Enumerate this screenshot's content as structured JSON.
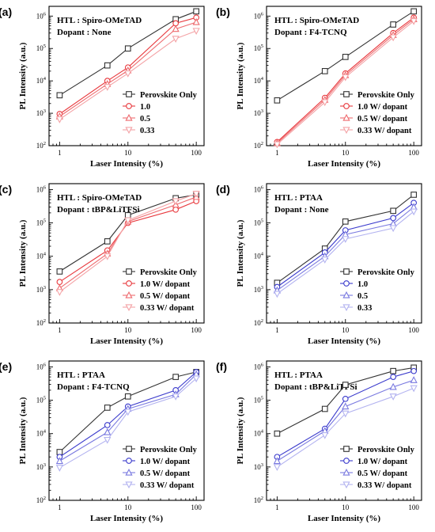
{
  "chart_data": [
    {
      "panel_label": "(a)",
      "type": "line",
      "xscale": "log",
      "yscale": "log",
      "xlabel": "Laser Intensity (%)",
      "ylabel": "PL Intensity (a.u.)",
      "xlim": [
        0.7,
        130
      ],
      "ylim": [
        100,
        2000000
      ],
      "xticks": [
        {
          "v": 1,
          "label": "1"
        },
        {
          "v": 10,
          "label": "10"
        },
        {
          "v": 100,
          "label": "100"
        }
      ],
      "yticks": [
        {
          "v": 100,
          "b": "10",
          "e": "2"
        },
        {
          "v": 1000,
          "b": "10",
          "e": "3"
        },
        {
          "v": 10000,
          "b": "10",
          "e": "4"
        },
        {
          "v": 100000,
          "b": "10",
          "e": "5"
        },
        {
          "v": 1000000,
          "b": "10",
          "e": "6"
        }
      ],
      "annotations": [
        "HTL : Spiro-OMeTAD",
        "Dopant : None"
      ],
      "legend_position": "bottom-right",
      "x": [
        1,
        5,
        10,
        50,
        100
      ],
      "series": [
        {
          "name": "Perovskite Only",
          "color": "#333333",
          "marker": "square",
          "values": [
            3600,
            30000,
            100000,
            800000,
            1400000
          ]
        },
        {
          "name": "1.0",
          "color": "#e8383d",
          "marker": "circle",
          "values": [
            950,
            10000,
            26000,
            600000,
            900000
          ]
        },
        {
          "name": "0.5",
          "color": "#ee6b6f",
          "marker": "triangle-up",
          "values": [
            800,
            8000,
            21000,
            400000,
            650000
          ]
        },
        {
          "name": "0.33",
          "color": "#f4a3a6",
          "marker": "triangle-down",
          "values": [
            650,
            6500,
            17000,
            200000,
            350000
          ]
        }
      ]
    },
    {
      "panel_label": "(b)",
      "type": "line",
      "xscale": "log",
      "yscale": "log",
      "xlabel": "Laser Intensity (%)",
      "ylabel": "PL Intensity (a.u.)",
      "xlim": [
        0.7,
        130
      ],
      "ylim": [
        100,
        2000000
      ],
      "xticks": [
        {
          "v": 1,
          "label": "1"
        },
        {
          "v": 10,
          "label": "10"
        },
        {
          "v": 100,
          "label": "100"
        }
      ],
      "yticks": [
        {
          "v": 100,
          "b": "10",
          "e": "2"
        },
        {
          "v": 1000,
          "b": "10",
          "e": "3"
        },
        {
          "v": 10000,
          "b": "10",
          "e": "4"
        },
        {
          "v": 100000,
          "b": "10",
          "e": "5"
        },
        {
          "v": 1000000,
          "b": "10",
          "e": "6"
        }
      ],
      "annotations": [
        "HTL : Spiro-OMeTAD",
        "Dopant : F4-TCNQ"
      ],
      "legend_position": "bottom-right",
      "x": [
        1,
        5,
        10,
        50,
        100
      ],
      "series": [
        {
          "name": "Perovskite Only",
          "color": "#333333",
          "marker": "square",
          "values": [
            2500,
            20000,
            55000,
            550000,
            1400000
          ]
        },
        {
          "name": "1.0 W/ dopant",
          "color": "#e8383d",
          "marker": "circle",
          "values": [
            130,
            3000,
            17000,
            300000,
            900000
          ]
        },
        {
          "name": "0.5 W/ dopant",
          "color": "#ee6b6f",
          "marker": "triangle-up",
          "values": [
            120,
            2600,
            15000,
            260000,
            800000
          ]
        },
        {
          "name": "0.33 W/ dopant",
          "color": "#f4a3a6",
          "marker": "triangle-down",
          "values": [
            110,
            2200,
            13000,
            220000,
            700000
          ]
        }
      ]
    },
    {
      "panel_label": "(c)",
      "type": "line",
      "xscale": "log",
      "yscale": "log",
      "xlabel": "Laser Intensity (%)",
      "ylabel": "PL Intensity (a.u.)",
      "xlim": [
        0.7,
        130
      ],
      "ylim": [
        100,
        1500000
      ],
      "xticks": [
        {
          "v": 1,
          "label": "1"
        },
        {
          "v": 10,
          "label": "10"
        },
        {
          "v": 100,
          "label": "100"
        }
      ],
      "yticks": [
        {
          "v": 100,
          "b": "10",
          "e": "2"
        },
        {
          "v": 1000,
          "b": "10",
          "e": "3"
        },
        {
          "v": 10000,
          "b": "10",
          "e": "4"
        },
        {
          "v": 100000,
          "b": "10",
          "e": "5"
        },
        {
          "v": 1000000,
          "b": "10",
          "e": "6"
        }
      ],
      "annotations": [
        "HTL : Spiro-OMeTAD",
        "Dopant : tBP&LiTFSi"
      ],
      "legend_position": "bottom-right",
      "x": [
        1,
        5,
        10,
        50,
        100
      ],
      "series": [
        {
          "name": "Perovskite Only",
          "color": "#333333",
          "marker": "square",
          "values": [
            3500,
            28000,
            170000,
            550000,
            700000
          ]
        },
        {
          "name": "1.0 W/ dopant",
          "color": "#e8383d",
          "marker": "circle",
          "values": [
            1700,
            15000,
            100000,
            250000,
            450000
          ]
        },
        {
          "name": "0.5 W/ dopant",
          "color": "#ee6b6f",
          "marker": "triangle-up",
          "values": [
            1100,
            12000,
            110000,
            350000,
            600000
          ]
        },
        {
          "name": "0.33 W/ dopant",
          "color": "#f4a3a6",
          "marker": "triangle-down",
          "values": [
            850,
            10000,
            120000,
            450000,
            750000
          ]
        }
      ]
    },
    {
      "panel_label": "(d)",
      "type": "line",
      "xscale": "log",
      "yscale": "log",
      "xlabel": "Laser Intensity (%)",
      "ylabel": "PL Intensity (a.u.)",
      "xlim": [
        0.7,
        130
      ],
      "ylim": [
        100,
        1500000
      ],
      "xticks": [
        {
          "v": 1,
          "label": "1"
        },
        {
          "v": 10,
          "label": "10"
        },
        {
          "v": 100,
          "label": "100"
        }
      ],
      "yticks": [
        {
          "v": 100,
          "b": "10",
          "e": "2"
        },
        {
          "v": 1000,
          "b": "10",
          "e": "3"
        },
        {
          "v": 10000,
          "b": "10",
          "e": "4"
        },
        {
          "v": 100000,
          "b": "10",
          "e": "5"
        },
        {
          "v": 1000000,
          "b": "10",
          "e": "6"
        }
      ],
      "annotations": [
        "HTL : PTAA",
        "Dopant : None"
      ],
      "legend_position": "bottom-right",
      "x": [
        1,
        5,
        10,
        50,
        100
      ],
      "series": [
        {
          "name": "Perovskite Only",
          "color": "#333333",
          "marker": "square",
          "values": [
            1600,
            17000,
            110000,
            230000,
            700000
          ]
        },
        {
          "name": "1.0",
          "color": "#3a3acc",
          "marker": "circle",
          "values": [
            1200,
            13000,
            60000,
            140000,
            400000
          ]
        },
        {
          "name": "0.5",
          "color": "#7a7ae0",
          "marker": "triangle-up",
          "values": [
            950,
            10000,
            45000,
            95000,
            300000
          ]
        },
        {
          "name": "0.33",
          "color": "#b3b3f0",
          "marker": "triangle-down",
          "values": [
            750,
            8000,
            33000,
            70000,
            220000
          ]
        }
      ]
    },
    {
      "panel_label": "(e)",
      "type": "line",
      "xscale": "log",
      "yscale": "log",
      "xlabel": "Laser Intensity (%)",
      "ylabel": "PL Intensity (a.u.)",
      "xlim": [
        0.7,
        130
      ],
      "ylim": [
        100,
        1500000
      ],
      "xticks": [
        {
          "v": 1,
          "label": "1"
        },
        {
          "v": 10,
          "label": "10"
        },
        {
          "v": 100,
          "label": "100"
        }
      ],
      "yticks": [
        {
          "v": 100,
          "b": "10",
          "e": "2"
        },
        {
          "v": 1000,
          "b": "10",
          "e": "3"
        },
        {
          "v": 10000,
          "b": "10",
          "e": "4"
        },
        {
          "v": 100000,
          "b": "10",
          "e": "5"
        },
        {
          "v": 1000000,
          "b": "10",
          "e": "6"
        }
      ],
      "annotations": [
        "HTL : PTAA",
        "Dopant : F4-TCNQ"
      ],
      "legend_position": "bottom-right",
      "x": [
        1,
        5,
        10,
        50,
        100
      ],
      "series": [
        {
          "name": "Perovskite Only",
          "color": "#333333",
          "marker": "square",
          "values": [
            2800,
            60000,
            130000,
            500000,
            700000
          ]
        },
        {
          "name": "1.0 W/ dopant",
          "color": "#3a3acc",
          "marker": "circle",
          "values": [
            2000,
            18000,
            65000,
            200000,
            700000
          ]
        },
        {
          "name": "0.5 W/ dopant",
          "color": "#7a7ae0",
          "marker": "triangle-up",
          "values": [
            1500,
            11000,
            55000,
            150000,
            600000
          ]
        },
        {
          "name": "0.33 W/ dopant",
          "color": "#b3b3f0",
          "marker": "triangle-down",
          "values": [
            950,
            6500,
            45000,
            130000,
            450000
          ]
        }
      ]
    },
    {
      "panel_label": "(f)",
      "type": "line",
      "xscale": "log",
      "yscale": "log",
      "xlabel": "Laser Intensity (%)",
      "ylabel": "PL Intensity (a.u.)",
      "xlim": [
        0.7,
        130
      ],
      "ylim": [
        100,
        1500000
      ],
      "xticks": [
        {
          "v": 1,
          "label": "1"
        },
        {
          "v": 10,
          "label": "10"
        },
        {
          "v": 100,
          "label": "100"
        }
      ],
      "yticks": [
        {
          "v": 100,
          "b": "10",
          "e": "2"
        },
        {
          "v": 1000,
          "b": "10",
          "e": "3"
        },
        {
          "v": 10000,
          "b": "10",
          "e": "4"
        },
        {
          "v": 100000,
          "b": "10",
          "e": "5"
        },
        {
          "v": 1000000,
          "b": "10",
          "e": "6"
        }
      ],
      "annotations": [
        "HTL : PTAA",
        "Dopant : tBP&LiTFSi"
      ],
      "legend_position": "bottom-right",
      "x": [
        1,
        5,
        10,
        50,
        100
      ],
      "series": [
        {
          "name": "Perovskite Only",
          "color": "#333333",
          "marker": "square",
          "values": [
            10000,
            55000,
            290000,
            750000,
            950000
          ]
        },
        {
          "name": "1.0 W/ dopant",
          "color": "#3a3acc",
          "marker": "circle",
          "values": [
            2000,
            14000,
            110000,
            500000,
            750000
          ]
        },
        {
          "name": "0.5 W/ dopant",
          "color": "#7a7ae0",
          "marker": "triangle-up",
          "values": [
            1500,
            12000,
            65000,
            250000,
            400000
          ]
        },
        {
          "name": "0.33 W/ dopant",
          "color": "#b3b3f0",
          "marker": "triangle-down",
          "values": [
            1000,
            9000,
            40000,
            130000,
            230000
          ]
        }
      ]
    }
  ]
}
